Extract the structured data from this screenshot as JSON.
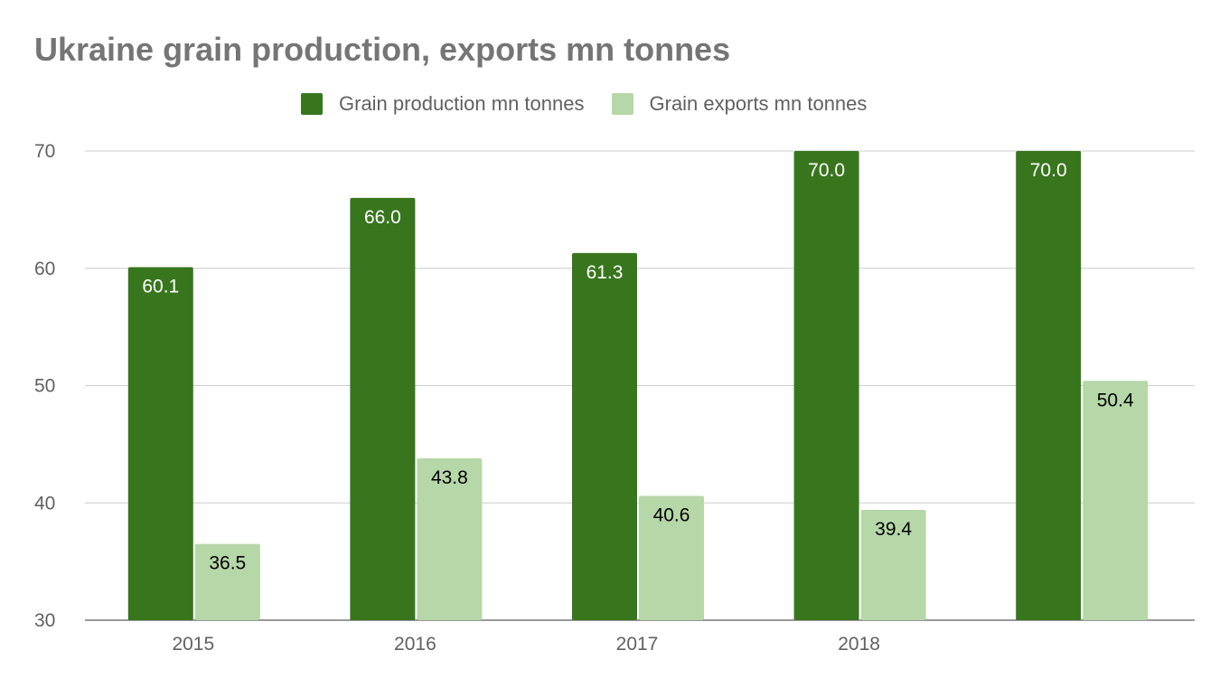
{
  "chart_data": {
    "type": "bar",
    "title": "Ukraine grain production, exports mn tonnes",
    "categories": [
      "2015",
      "2016",
      "2017",
      "2018",
      ""
    ],
    "series": [
      {
        "name": "Grain production mn tonnes",
        "values": [
          60.1,
          66.0,
          61.3,
          70.0,
          70.0
        ],
        "labels": [
          "60.1",
          "66.0",
          "61.3",
          "70.0",
          "70.0"
        ],
        "color": "#38761d",
        "label_color": "#ffffff"
      },
      {
        "name": "Grain exports mn tonnes",
        "values": [
          36.5,
          43.8,
          40.6,
          39.4,
          50.4
        ],
        "labels": [
          "36.5",
          "43.8",
          "40.6",
          "39.4",
          "50.4"
        ],
        "color": "#b6d7a8",
        "label_color": "#000000"
      }
    ],
    "ylim": [
      30,
      70
    ],
    "yticks": [
      "30",
      "40",
      "50",
      "60",
      "70"
    ],
    "grid": true,
    "legend_position": "top",
    "gridline_color": "#cccccc"
  }
}
